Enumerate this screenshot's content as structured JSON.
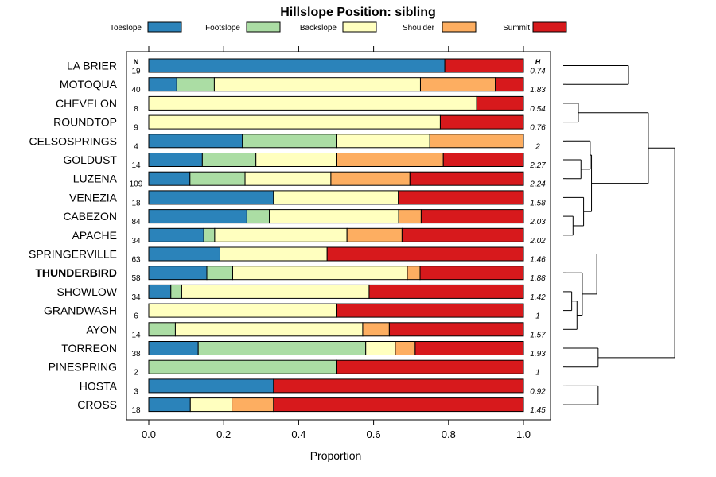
{
  "chart_data": {
    "type": "stacked-horizontal-bar",
    "title": "Hillslope Position: sibling",
    "xlabel": "Proportion",
    "xlim": [
      0,
      1
    ],
    "x_ticks": [
      "0.0",
      "0.2",
      "0.4",
      "0.6",
      "0.8",
      "1.0"
    ],
    "n_header": "N",
    "h_header": "H",
    "legend_position": "top",
    "classes": [
      {
        "name": "Toeslope",
        "color": "#2b83ba"
      },
      {
        "name": "Footslope",
        "color": "#abdda4"
      },
      {
        "name": "Backslope",
        "color": "#ffffbf"
      },
      {
        "name": "Shoulder",
        "color": "#fdae61"
      },
      {
        "name": "Summit",
        "color": "#d7191c"
      }
    ],
    "rows": [
      {
        "name": "LA BRIER",
        "n": "19",
        "h": "0.74",
        "values": [
          0.79,
          0,
          0,
          0,
          0.21
        ]
      },
      {
        "name": "MOTOQUA",
        "n": "40",
        "h": "1.83",
        "values": [
          0.075,
          0.1,
          0.55,
          0.2,
          0.075
        ]
      },
      {
        "name": "CHEVELON",
        "n": "8",
        "h": "0.54",
        "values": [
          0,
          0,
          0.875,
          0,
          0.125
        ]
      },
      {
        "name": "ROUNDTOP",
        "n": "9",
        "h": "0.76",
        "values": [
          0,
          0,
          0.778,
          0,
          0.222
        ]
      },
      {
        "name": "CELSOSPRINGS",
        "n": "4",
        "h": "2",
        "values": [
          0.25,
          0.25,
          0.25,
          0.25,
          0
        ]
      },
      {
        "name": "GOLDUST",
        "n": "14",
        "h": "2.27",
        "values": [
          0.143,
          0.143,
          0.214,
          0.286,
          0.214
        ]
      },
      {
        "name": "LUZENA",
        "n": "109",
        "h": "2.24",
        "values": [
          0.11,
          0.147,
          0.229,
          0.211,
          0.303
        ]
      },
      {
        "name": "VENEZIA",
        "n": "18",
        "h": "1.58",
        "values": [
          0.333,
          0,
          0.333,
          0,
          0.334
        ]
      },
      {
        "name": "CABEZON",
        "n": "84",
        "h": "2.03",
        "values": [
          0.262,
          0.06,
          0.345,
          0.06,
          0.273
        ]
      },
      {
        "name": "APACHE",
        "n": "34",
        "h": "2.02",
        "values": [
          0.147,
          0.029,
          0.353,
          0.147,
          0.324
        ]
      },
      {
        "name": "SPRINGERVILLE",
        "n": "63",
        "h": "1.46",
        "values": [
          0.19,
          0,
          0.286,
          0,
          0.524
        ]
      },
      {
        "name": "THUNDERBIRD",
        "n": "58",
        "h": "1.88",
        "values": [
          0.155,
          0.069,
          0.466,
          0.034,
          0.276
        ],
        "bold": true
      },
      {
        "name": "SHOWLOW",
        "n": "34",
        "h": "1.42",
        "values": [
          0.059,
          0.029,
          0.5,
          0,
          0.412
        ]
      },
      {
        "name": "GRANDWASH",
        "n": "6",
        "h": "1",
        "values": [
          0,
          0,
          0.5,
          0,
          0.5
        ]
      },
      {
        "name": "AYON",
        "n": "14",
        "h": "1.57",
        "values": [
          0,
          0.071,
          0.5,
          0.071,
          0.358
        ]
      },
      {
        "name": "TORREON",
        "n": "38",
        "h": "1.93",
        "values": [
          0.132,
          0.447,
          0.079,
          0.053,
          0.289
        ]
      },
      {
        "name": "PINESPRING",
        "n": "2",
        "h": "1",
        "values": [
          0,
          0.5,
          0,
          0,
          0.5
        ]
      },
      {
        "name": "HOSTA",
        "n": "3",
        "h": "0.92",
        "values": [
          0.333,
          0,
          0,
          0,
          0.667
        ]
      },
      {
        "name": "CROSS",
        "n": "18",
        "h": "1.45",
        "values": [
          0.111,
          0,
          0.111,
          0.111,
          0.667
        ]
      }
    ],
    "dendrogram_merges": [
      [
        2,
        3
      ],
      [
        0,
        1
      ],
      [
        5,
        6
      ],
      [
        4,
        5
      ],
      [
        8,
        9
      ],
      [
        7,
        8
      ],
      [
        6,
        7
      ],
      [
        12,
        13
      ],
      [
        13,
        14
      ],
      [
        11,
        12
      ],
      [
        10,
        11
      ],
      [
        3,
        4
      ],
      [
        15,
        16
      ],
      [
        17,
        18
      ],
      [
        2,
        15
      ]
    ],
    "dendrogram_heights": [
      0.09,
      0.47,
      0.11,
      0.18,
      0.05,
      0.13,
      0.19,
      0.04,
      0.08,
      0.12,
      0.23,
      0.62,
      0.24,
      0.24,
      0.82
    ]
  }
}
